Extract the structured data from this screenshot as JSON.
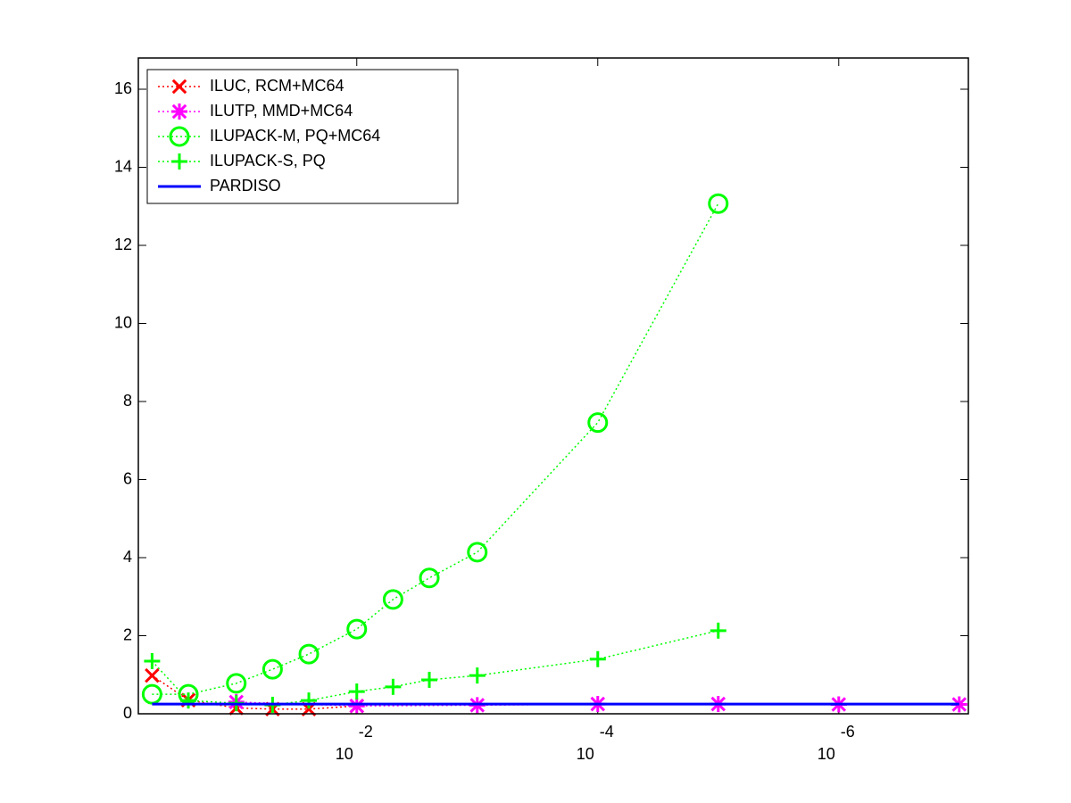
{
  "chart_data": {
    "type": "line",
    "xscale": "log",
    "xlim": [
      0.65,
      8.4e-08
    ],
    "xticks": [
      {
        "value": 0.01,
        "label": "10",
        "exponent": "-2"
      },
      {
        "value": 0.0001,
        "label": "10",
        "exponent": "-4"
      },
      {
        "value": 1e-06,
        "label": "10",
        "exponent": "-6"
      }
    ],
    "ylim": [
      0,
      16.8
    ],
    "yticks": [
      0,
      2,
      4,
      6,
      8,
      10,
      12,
      14,
      16
    ],
    "legend": "upper left",
    "series": [
      {
        "name": "ILUC, RCM+MC64",
        "color": "#ff0000",
        "marker": "x",
        "linestyle": "dotted",
        "x": [
          0.5,
          0.25,
          0.1,
          0.05,
          0.025,
          0.01
        ],
        "values": [
          0.98,
          0.35,
          0.15,
          0.12,
          0.12,
          0.2
        ]
      },
      {
        "name": "ILUTP, MMD+MC64",
        "color": "#ff00ff",
        "marker": "star",
        "linestyle": "dotted",
        "x": [
          0.1,
          0.01,
          0.001,
          0.0001,
          1e-05,
          1e-06,
          1e-07
        ],
        "values": [
          0.3,
          0.2,
          0.22,
          0.25,
          0.25,
          0.24,
          0.24
        ]
      },
      {
        "name": "ILUPACK-M, PQ+MC64",
        "color": "#00ff00",
        "marker": "circle",
        "linestyle": "dotted",
        "x": [
          0.5,
          0.25,
          0.1,
          0.05,
          0.025,
          0.01,
          0.005,
          0.0025,
          0.001,
          0.0001,
          1e-05
        ],
        "values": [
          0.5,
          0.5,
          0.78,
          1.14,
          1.53,
          2.17,
          2.93,
          3.48,
          4.14,
          7.46,
          13.07
        ]
      },
      {
        "name": "ILUPACK-S, PQ",
        "color": "#00ff00",
        "marker": "plus",
        "linestyle": "dotted",
        "x": [
          0.5,
          0.25,
          0.1,
          0.05,
          0.025,
          0.01,
          0.005,
          0.0025,
          0.001,
          0.0001,
          1e-05
        ],
        "values": [
          1.35,
          0.34,
          0.27,
          0.23,
          0.34,
          0.57,
          0.69,
          0.87,
          0.98,
          1.4,
          2.13
        ]
      },
      {
        "name": "PARDISO",
        "color": "#0000ff",
        "marker": "none",
        "linestyle": "solid",
        "x": [
          0.5,
          1e-07
        ],
        "values": [
          0.25,
          0.25
        ]
      }
    ]
  }
}
